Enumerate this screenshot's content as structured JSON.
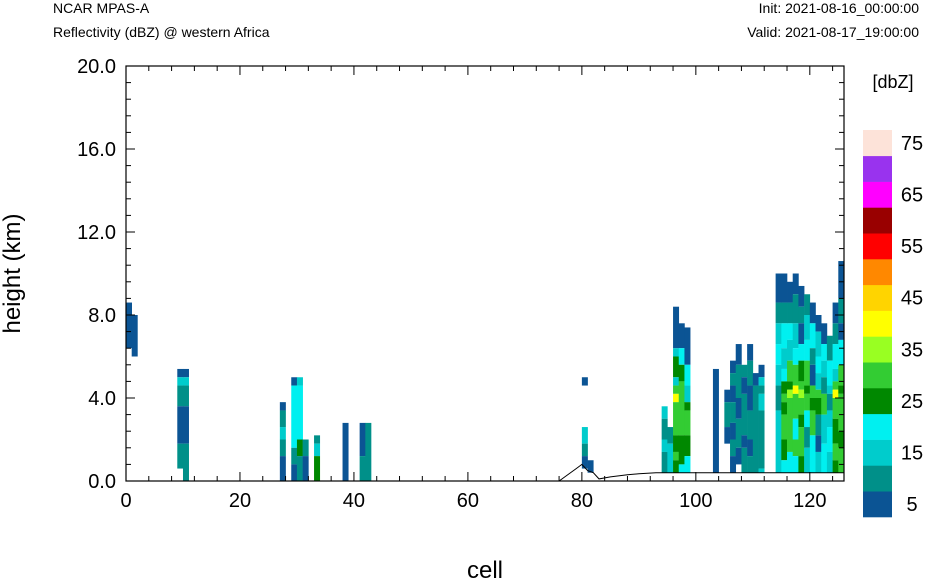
{
  "header": {
    "model": "NCAR MPAS-A",
    "field": "Reflectivity (dBZ) @ western Africa",
    "init": "Init: 2021-08-16_00:00:00",
    "valid": "Valid: 2021-08-17_19:00:00"
  },
  "chart_data": {
    "type": "heatmap",
    "title": "Reflectivity (dBZ) @ western Africa",
    "xlabel": "cell",
    "ylabel": "height (km)",
    "xlim": [
      0,
      126
    ],
    "ylim": [
      0,
      20
    ],
    "x_ticks": [
      0,
      20,
      40,
      60,
      80,
      100,
      120
    ],
    "x_tick_labels": [
      "0",
      "20",
      "40",
      "60",
      "80",
      "100",
      "120"
    ],
    "y_ticks": [
      0,
      4,
      8,
      12,
      16,
      20
    ],
    "y_tick_labels": [
      "0.0",
      "4.0",
      "8.0",
      "12.0",
      "16.0",
      "20.0"
    ],
    "colorbar": {
      "title": "[dbZ]",
      "levels": [
        5,
        10,
        15,
        20,
        25,
        30,
        35,
        40,
        45,
        50,
        55,
        60,
        65,
        70,
        75
      ],
      "tick_labels": [
        "5",
        "15",
        "25",
        "35",
        "45",
        "55",
        "65",
        "75"
      ],
      "colors": [
        "#0b5494",
        "#009089",
        "#00cccc",
        "#00f0f0",
        "#008800",
        "#33cc33",
        "#99ff22",
        "#ffff00",
        "#ffd400",
        "#ff8800",
        "#ff0000",
        "#990000",
        "#ff00ff",
        "#9933ee",
        "#fde3d9"
      ]
    },
    "cell_width": 1,
    "level_height_km": 0.4,
    "terrain_km": [
      [
        0,
        0
      ],
      [
        76,
        0
      ],
      [
        77,
        0.2
      ],
      [
        79,
        0.6
      ],
      [
        80,
        0.8
      ],
      [
        81,
        0.5
      ],
      [
        82,
        0.4
      ],
      [
        83,
        0.1
      ],
      [
        85,
        0.2
      ],
      [
        88,
        0.3
      ],
      [
        90,
        0.35
      ],
      [
        93,
        0.4
      ],
      [
        100,
        0.4
      ],
      [
        110,
        0.4
      ],
      [
        120,
        0.4
      ],
      [
        126,
        0.4
      ]
    ],
    "columns": [
      {
        "x": 0,
        "bottom": 6.4,
        "bands": [
          [
            8.6,
            5
          ]
        ]
      },
      {
        "x": 1,
        "bottom": 6.0,
        "bands": [
          [
            8.0,
            5
          ]
        ]
      },
      {
        "x": 9,
        "bottom": 0.6,
        "bands": [
          [
            5.4,
            5
          ],
          [
            5.0,
            15
          ],
          [
            4.6,
            10
          ],
          [
            3.6,
            5
          ],
          [
            1.8,
            10
          ]
        ]
      },
      {
        "x": 10,
        "bottom": 0.0,
        "bands": [
          [
            5.4,
            5
          ],
          [
            5.0,
            15
          ],
          [
            4.6,
            10
          ],
          [
            3.6,
            5
          ],
          [
            1.8,
            10
          ]
        ]
      },
      {
        "x": 27,
        "bottom": 0.0,
        "bands": [
          [
            3.8,
            5
          ],
          [
            3.4,
            10
          ],
          [
            2.6,
            15
          ],
          [
            2.0,
            10
          ],
          [
            1.2,
            5
          ]
        ]
      },
      {
        "x": 29,
        "bottom": 0.0,
        "bands": [
          [
            5.0,
            5
          ],
          [
            4.6,
            20
          ],
          [
            1.6,
            10
          ],
          [
            0.8,
            5
          ]
        ]
      },
      {
        "x": 30,
        "bottom": 0.0,
        "bands": [
          [
            5.0,
            15
          ],
          [
            4.6,
            20
          ],
          [
            2.0,
            25
          ],
          [
            1.2,
            10
          ]
        ]
      },
      {
        "x": 31,
        "bottom": 0.0,
        "bands": [
          [
            2.0,
            10
          ],
          [
            1.2,
            5
          ]
        ]
      },
      {
        "x": 33,
        "bottom": 0.0,
        "bands": [
          [
            2.2,
            10
          ],
          [
            1.8,
            15
          ],
          [
            1.2,
            25
          ]
        ]
      },
      {
        "x": 38,
        "bottom": 0.0,
        "bands": [
          [
            2.8,
            5
          ]
        ]
      },
      {
        "x": 41,
        "bottom": 0.0,
        "bands": [
          [
            2.8,
            5
          ],
          [
            1.2,
            10
          ]
        ]
      },
      {
        "x": 42,
        "bottom": 0.0,
        "bands": [
          [
            2.8,
            10
          ]
        ]
      },
      {
        "x": 80,
        "bottom": 0.6,
        "bands": [
          [
            5.0,
            5
          ],
          [
            4.6,
            0
          ],
          [
            2.6,
            15
          ],
          [
            1.8,
            10
          ],
          [
            1.2,
            5
          ]
        ]
      },
      {
        "x": 81,
        "bottom": 0.4,
        "bands": [
          [
            1.0,
            5
          ]
        ]
      },
      {
        "x": 94,
        "bottom": 0.4,
        "bands": [
          [
            3.6,
            15
          ],
          [
            3.0,
            10
          ],
          [
            2.0,
            15
          ],
          [
            1.4,
            10
          ]
        ]
      },
      {
        "x": 95,
        "bottom": 0.4,
        "bands": [
          [
            2.6,
            10
          ],
          [
            1.8,
            15
          ]
        ]
      },
      {
        "x": 96,
        "bottom": 0.4,
        "bands": [
          [
            8.4,
            5
          ],
          [
            6.4,
            15
          ],
          [
            6.0,
            25
          ],
          [
            5.0,
            15
          ],
          [
            4.6,
            30
          ],
          [
            4.2,
            40
          ],
          [
            3.8,
            30
          ],
          [
            2.2,
            25
          ],
          [
            1.4,
            30
          ],
          [
            1.0,
            25
          ]
        ]
      },
      {
        "x": 97,
        "bottom": 0.4,
        "bands": [
          [
            7.6,
            5
          ],
          [
            6.4,
            20
          ],
          [
            5.6,
            25
          ],
          [
            4.8,
            30
          ],
          [
            2.2,
            25
          ],
          [
            0.8,
            20
          ]
        ]
      },
      {
        "x": 98,
        "bottom": 0.4,
        "bands": [
          [
            7.4,
            5
          ],
          [
            5.6,
            20
          ],
          [
            4.6,
            15
          ],
          [
            3.8,
            25
          ],
          [
            3.4,
            30
          ],
          [
            2.2,
            25
          ],
          [
            1.2,
            20
          ]
        ]
      },
      {
        "x": 103,
        "bottom": 0.4,
        "bands": [
          [
            5.4,
            5
          ]
        ]
      },
      {
        "x": 105,
        "bottom": 1.8,
        "bands": [
          [
            4.4,
            5
          ],
          [
            3.8,
            10
          ],
          [
            2.6,
            5
          ]
        ]
      },
      {
        "x": 106,
        "bottom": 0.4,
        "bands": [
          [
            5.8,
            5
          ],
          [
            5.2,
            10
          ],
          [
            4.6,
            5
          ],
          [
            3.8,
            10
          ],
          [
            2.8,
            5
          ],
          [
            2.0,
            10
          ],
          [
            1.2,
            5
          ]
        ]
      },
      {
        "x": 107,
        "bottom": 0.8,
        "bands": [
          [
            6.6,
            5
          ],
          [
            5.6,
            10
          ],
          [
            4.0,
            5
          ],
          [
            3.0,
            10
          ],
          [
            1.6,
            5
          ]
        ]
      },
      {
        "x": 108,
        "bottom": 0.4,
        "bands": [
          [
            5.6,
            10
          ],
          [
            5.0,
            5
          ],
          [
            4.2,
            10
          ],
          [
            2.2,
            5
          ],
          [
            1.6,
            10
          ]
        ]
      },
      {
        "x": 109,
        "bottom": 0.4,
        "bands": [
          [
            6.6,
            5
          ],
          [
            5.8,
            10
          ],
          [
            4.6,
            5
          ],
          [
            3.4,
            10
          ],
          [
            2.0,
            5
          ],
          [
            1.2,
            10
          ]
        ]
      },
      {
        "x": 110,
        "bottom": 0.4,
        "bands": [
          [
            5.2,
            5
          ],
          [
            4.6,
            10
          ]
        ]
      },
      {
        "x": 111,
        "bottom": 0.4,
        "bands": [
          [
            5.6,
            5
          ],
          [
            5.0,
            15
          ],
          [
            4.6,
            10
          ],
          [
            4.2,
            15
          ],
          [
            3.4,
            10
          ],
          [
            0.6,
            15
          ]
        ]
      },
      {
        "x": 114,
        "bottom": 0.4,
        "bands": [
          [
            10.0,
            5
          ],
          [
            8.6,
            10
          ],
          [
            7.6,
            15
          ],
          [
            6.6,
            20
          ],
          [
            5.6,
            15
          ],
          [
            4.6,
            10
          ],
          [
            3.4,
            15
          ]
        ]
      },
      {
        "x": 115,
        "bottom": 0.4,
        "bands": [
          [
            10.0,
            5
          ],
          [
            8.6,
            10
          ],
          [
            7.6,
            20
          ],
          [
            6.4,
            15
          ],
          [
            5.4,
            20
          ],
          [
            4.8,
            25
          ],
          [
            4.2,
            30
          ],
          [
            3.8,
            25
          ],
          [
            3.2,
            30
          ],
          [
            2.0,
            25
          ],
          [
            1.0,
            20
          ]
        ]
      },
      {
        "x": 116,
        "bottom": 0.4,
        "bands": [
          [
            9.6,
            5
          ],
          [
            8.6,
            10
          ],
          [
            7.6,
            20
          ],
          [
            6.8,
            15
          ],
          [
            5.8,
            30
          ],
          [
            4.8,
            25
          ],
          [
            4.4,
            35
          ],
          [
            4.0,
            30
          ],
          [
            1.4,
            20
          ]
        ]
      },
      {
        "x": 117,
        "bottom": 0.4,
        "bands": [
          [
            10.0,
            5
          ],
          [
            9.0,
            10
          ],
          [
            7.6,
            15
          ],
          [
            6.4,
            20
          ],
          [
            5.6,
            30
          ],
          [
            4.6,
            40
          ],
          [
            4.2,
            30
          ],
          [
            3.0,
            20
          ],
          [
            2.0,
            30
          ],
          [
            1.2,
            20
          ]
        ]
      },
      {
        "x": 118,
        "bottom": 0.4,
        "bands": [
          [
            9.4,
            5
          ],
          [
            8.4,
            10
          ],
          [
            7.6,
            5
          ],
          [
            6.6,
            20
          ],
          [
            5.8,
            25
          ],
          [
            4.8,
            30
          ],
          [
            4.4,
            35
          ],
          [
            4.0,
            30
          ],
          [
            3.2,
            25
          ],
          [
            2.6,
            30
          ],
          [
            1.2,
            25
          ]
        ]
      },
      {
        "x": 119,
        "bottom": 0.4,
        "bands": [
          [
            9.0,
            10
          ],
          [
            8.0,
            15
          ],
          [
            6.8,
            20
          ],
          [
            5.8,
            30
          ],
          [
            4.6,
            25
          ],
          [
            4.2,
            30
          ],
          [
            3.4,
            20
          ],
          [
            2.6,
            10
          ],
          [
            1.6,
            15
          ]
        ]
      },
      {
        "x": 120,
        "bottom": 0.4,
        "bands": [
          [
            8.6,
            5
          ],
          [
            7.6,
            20
          ],
          [
            6.4,
            10
          ],
          [
            5.6,
            5
          ],
          [
            4.6,
            30
          ],
          [
            4.0,
            25
          ],
          [
            3.4,
            30
          ],
          [
            2.2,
            20
          ]
        ]
      },
      {
        "x": 121,
        "bottom": 0.4,
        "bands": [
          [
            8.0,
            5
          ],
          [
            7.2,
            15
          ],
          [
            6.0,
            20
          ],
          [
            5.2,
            15
          ],
          [
            4.4,
            30
          ],
          [
            4.0,
            25
          ],
          [
            3.2,
            10
          ],
          [
            2.2,
            5
          ],
          [
            1.4,
            15
          ]
        ]
      },
      {
        "x": 122,
        "bottom": 0.4,
        "bands": [
          [
            7.6,
            5
          ],
          [
            6.6,
            20
          ],
          [
            5.8,
            15
          ],
          [
            5.0,
            10
          ],
          [
            4.2,
            30
          ],
          [
            3.2,
            15
          ],
          [
            1.8,
            20
          ]
        ]
      },
      {
        "x": 123,
        "bottom": 0.4,
        "bands": [
          [
            7.0,
            10
          ],
          [
            5.8,
            20
          ],
          [
            4.6,
            15
          ],
          [
            4.2,
            10
          ],
          [
            3.4,
            15
          ],
          [
            2.6,
            20
          ],
          [
            1.4,
            15
          ]
        ]
      },
      {
        "x": 124,
        "bottom": 0.4,
        "bands": [
          [
            8.6,
            5
          ],
          [
            7.6,
            10
          ],
          [
            6.6,
            20
          ],
          [
            5.4,
            15
          ],
          [
            4.8,
            30
          ],
          [
            4.4,
            40
          ],
          [
            4.0,
            30
          ],
          [
            3.0,
            25
          ],
          [
            1.8,
            30
          ],
          [
            1.0,
            25
          ]
        ]
      },
      {
        "x": 125,
        "bottom": 0.4,
        "bands": [
          [
            10.6,
            5
          ],
          [
            8.8,
            10
          ],
          [
            7.6,
            5
          ],
          [
            6.8,
            20
          ],
          [
            5.6,
            30
          ],
          [
            4.6,
            25
          ],
          [
            4.2,
            30
          ],
          [
            2.4,
            25
          ],
          [
            1.6,
            30
          ]
        ]
      }
    ]
  }
}
